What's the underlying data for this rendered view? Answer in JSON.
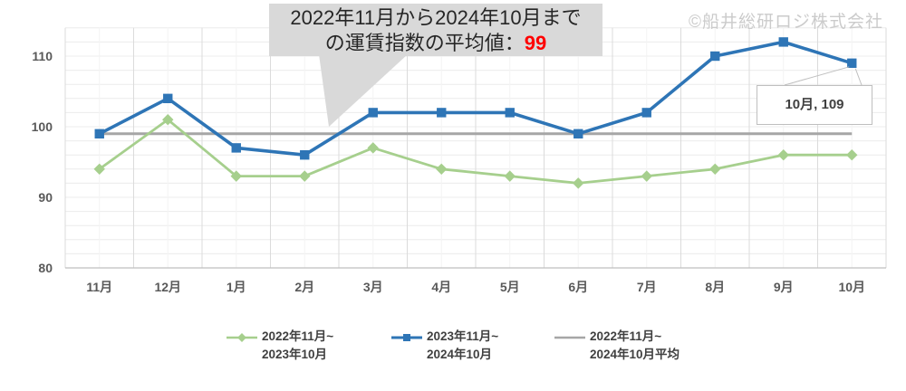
{
  "watermark": {
    "text": "©船井総研ロジ株式会社"
  },
  "annotation": {
    "line1": "2022年11月から2024年10月まで",
    "line2_prefix": "の運賃指数の平均値：",
    "value": "99",
    "value_color": "#FF0000",
    "box_color": "#D9D9D9"
  },
  "point_label": {
    "text": "10月, 109"
  },
  "legend": [
    {
      "line1": "2022年11月~",
      "line2": "2023年10月",
      "color": "#A6CF8D",
      "marker": "diamond"
    },
    {
      "line1": "2023年11月~",
      "line2": "2024年10月",
      "color": "#2E75B6",
      "marker": "square"
    },
    {
      "line1": "2022年11月~",
      "line2": "2024年10月平均",
      "color": "#A6A6A6",
      "marker": "none"
    }
  ],
  "chart_data": {
    "type": "line",
    "categories": [
      "11月",
      "12月",
      "1月",
      "2月",
      "3月",
      "4月",
      "5月",
      "6月",
      "7月",
      "8月",
      "9月",
      "10月"
    ],
    "series": [
      {
        "name": "2022年11月~2023年10月",
        "color": "#A6CF8D",
        "marker": "diamond",
        "values": [
          94,
          101,
          93,
          93,
          97,
          94,
          93,
          92,
          93,
          94,
          96,
          96
        ]
      },
      {
        "name": "2023年11月~2024年10月",
        "color": "#2E75B6",
        "marker": "square",
        "values": [
          99,
          104,
          97,
          96,
          102,
          102,
          102,
          99,
          102,
          110,
          112,
          109
        ]
      },
      {
        "name": "2022年11月~2024年10月平均",
        "color": "#A6A6A6",
        "marker": "none",
        "constant": 99
      }
    ],
    "title": "2022年11月から2024年10月までの運賃指数の平均値：99",
    "xlabel": "",
    "ylabel": "",
    "ylim": [
      80,
      114
    ],
    "yticks": [
      80,
      90,
      100,
      110
    ],
    "grid": true,
    "legend_position": "bottom",
    "highlight": {
      "category": "10月",
      "series": "2023年11月~2024年10月",
      "value": 109,
      "label": "10月, 109"
    }
  }
}
